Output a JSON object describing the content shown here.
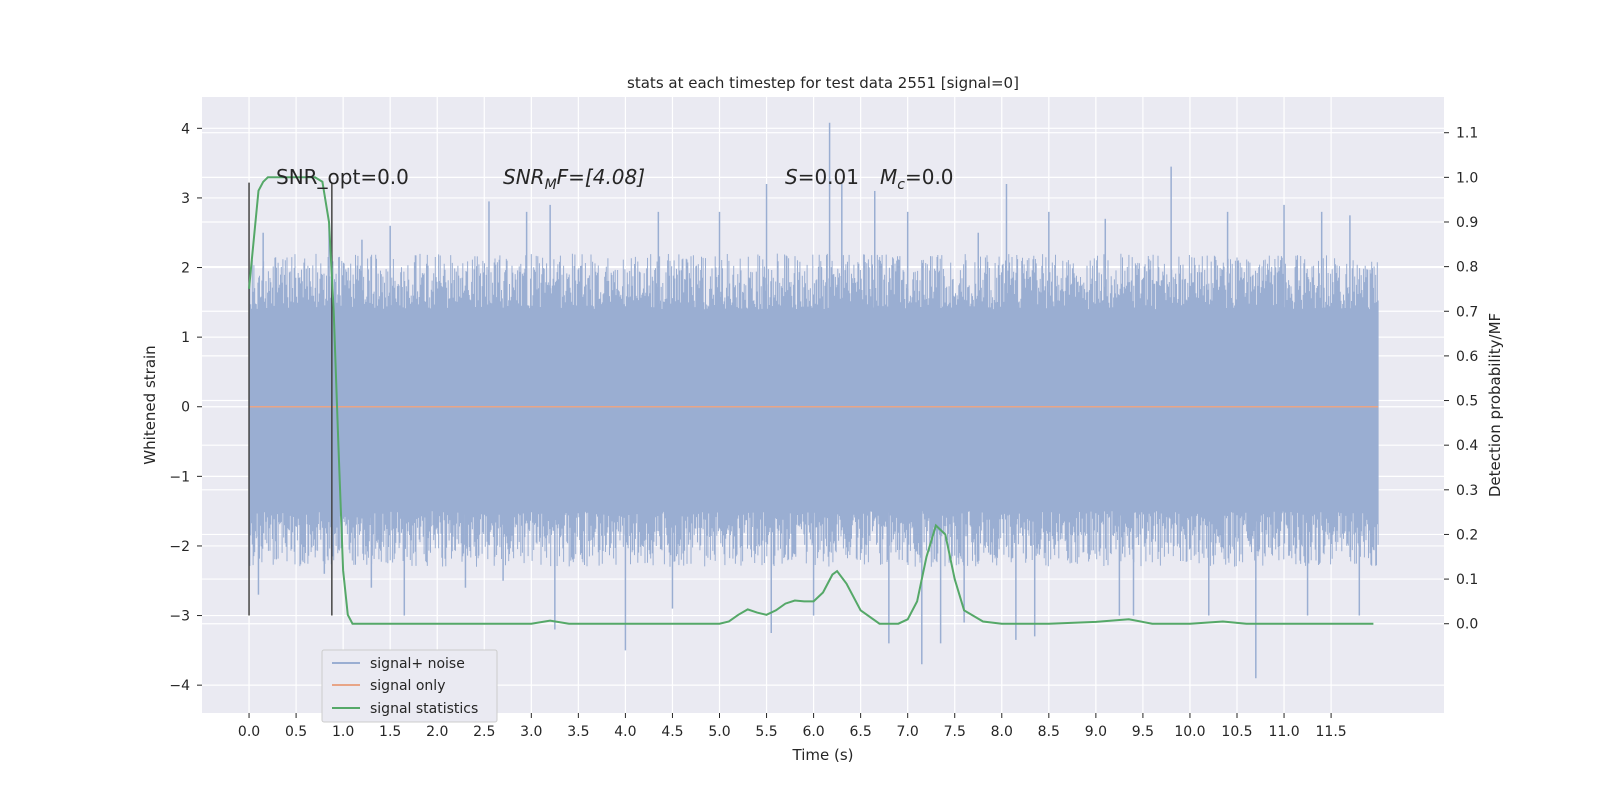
{
  "chart_data": {
    "type": "line",
    "title": "stats at each timestep for test data 2551 [signal=0]",
    "xlabel": "Time (s)",
    "ylabel_left": "Whitened strain",
    "ylabel_right": "Detection probability/MF",
    "xlim": [
      -0.5,
      12.7
    ],
    "ylim_left": [
      -4.4,
      4.45
    ],
    "ylim_right": [
      -0.2,
      1.18
    ],
    "x_ticks": [
      0.0,
      0.5,
      1.0,
      1.5,
      2.0,
      2.5,
      3.0,
      3.5,
      4.0,
      4.5,
      5.0,
      5.5,
      6.0,
      6.5,
      7.0,
      7.5,
      8.0,
      8.5,
      9.0,
      9.5,
      10.0,
      10.5,
      11.0,
      11.5
    ],
    "x_tick_labels": [
      "0.0",
      "0.5",
      "1.0",
      "1.5",
      "2.0",
      "2.5",
      "3.0",
      "3.5",
      "4.0",
      "4.5",
      "5.0",
      "5.5",
      "6.0",
      "6.5",
      "7.0",
      "7.5",
      "8.0",
      "8.5",
      "9.0",
      "9.5",
      "10.0",
      "10.5",
      "11.0",
      "11.5"
    ],
    "y_left_ticks": [
      -4,
      -3,
      -2,
      -1,
      0,
      1,
      2,
      3,
      4
    ],
    "y_left_tick_labels": [
      "−4",
      "−3",
      "−2",
      "−1",
      "0",
      "1",
      "2",
      "3",
      "4"
    ],
    "y_right_ticks": [
      0.0,
      0.1,
      0.2,
      0.3,
      0.4,
      0.5,
      0.6,
      0.7,
      0.8,
      0.9,
      1.0,
      1.1
    ],
    "y_right_tick_labels": [
      "0.0",
      "0.1",
      "0.2",
      "0.3",
      "0.4",
      "0.5",
      "0.6",
      "0.7",
      "0.8",
      "0.9",
      "1.0",
      "1.1"
    ],
    "grid": true,
    "legend_position": "lower-left",
    "annotations": {
      "snr_opt": "SNR_opt=0.0",
      "snr_mf_main": "SNR",
      "snr_mf_sub": "M",
      "snr_mf_rest": "F=[4.08]",
      "s_main": "S",
      "s_rest": "=0.01",
      "mc_main": "M",
      "mc_sub": "c",
      "mc_rest": "=0.0"
    },
    "series": [
      {
        "name": "signal+ noise",
        "color": "#9aaed2",
        "x_range": [
          0.0,
          12.0
        ],
        "typical_envelope": [
          -1.9,
          1.8
        ],
        "peaks": [
          {
            "x": 0.15,
            "y": 2.5
          },
          {
            "x": 0.85,
            "y": 2.6
          },
          {
            "x": 1.2,
            "y": 2.4
          },
          {
            "x": 1.5,
            "y": 2.6
          },
          {
            "x": 2.55,
            "y": 2.95
          },
          {
            "x": 2.95,
            "y": 2.8
          },
          {
            "x": 3.2,
            "y": 2.9
          },
          {
            "x": 4.35,
            "y": 2.8
          },
          {
            "x": 5.0,
            "y": 2.8
          },
          {
            "x": 5.5,
            "y": 3.2
          },
          {
            "x": 6.17,
            "y": 4.08
          },
          {
            "x": 6.3,
            "y": 3.2
          },
          {
            "x": 6.65,
            "y": 3.1
          },
          {
            "x": 7.0,
            "y": 2.8
          },
          {
            "x": 7.75,
            "y": 2.5
          },
          {
            "x": 8.05,
            "y": 3.2
          },
          {
            "x": 8.5,
            "y": 2.8
          },
          {
            "x": 9.1,
            "y": 2.7
          },
          {
            "x": 9.8,
            "y": 3.45
          },
          {
            "x": 10.4,
            "y": 2.8
          },
          {
            "x": 11.0,
            "y": 2.9
          },
          {
            "x": 11.4,
            "y": 2.8
          },
          {
            "x": 11.7,
            "y": 2.75
          }
        ],
        "troughs": [
          {
            "x": 0.1,
            "y": -2.7
          },
          {
            "x": 0.8,
            "y": -2.4
          },
          {
            "x": 1.3,
            "y": -2.6
          },
          {
            "x": 1.65,
            "y": -3.0
          },
          {
            "x": 2.3,
            "y": -2.6
          },
          {
            "x": 2.7,
            "y": -2.5
          },
          {
            "x": 3.25,
            "y": -3.2
          },
          {
            "x": 4.0,
            "y": -3.5
          },
          {
            "x": 4.5,
            "y": -2.9
          },
          {
            "x": 5.55,
            "y": -3.25
          },
          {
            "x": 6.0,
            "y": -3.0
          },
          {
            "x": 6.8,
            "y": -3.4
          },
          {
            "x": 7.15,
            "y": -3.7
          },
          {
            "x": 7.35,
            "y": -3.4
          },
          {
            "x": 7.6,
            "y": -3.1
          },
          {
            "x": 8.15,
            "y": -3.35
          },
          {
            "x": 8.35,
            "y": -3.3
          },
          {
            "x": 9.25,
            "y": -3.0
          },
          {
            "x": 9.4,
            "y": -3.0
          },
          {
            "x": 10.2,
            "y": -3.0
          },
          {
            "x": 10.7,
            "y": -3.9
          },
          {
            "x": 11.25,
            "y": -3.0
          },
          {
            "x": 11.8,
            "y": -3.0
          }
        ]
      },
      {
        "name": "signal only",
        "color": "#e8a587",
        "x": [
          0.0,
          12.0
        ],
        "y": [
          0.0,
          0.0
        ]
      },
      {
        "name": "signal statistics",
        "color": "#55a868",
        "axis": "right",
        "x": [
          0.0,
          0.1,
          0.15,
          0.2,
          0.3,
          0.45,
          0.6,
          0.7,
          0.78,
          0.85,
          0.9,
          0.95,
          1.0,
          1.05,
          1.1,
          1.2,
          1.5,
          2.0,
          2.5,
          3.0,
          3.2,
          3.4,
          3.6,
          4.0,
          4.5,
          5.0,
          5.1,
          5.2,
          5.3,
          5.4,
          5.5,
          5.6,
          5.7,
          5.8,
          5.9,
          6.0,
          6.1,
          6.2,
          6.25,
          6.35,
          6.5,
          6.7,
          6.9,
          7.0,
          7.1,
          7.2,
          7.3,
          7.4,
          7.5,
          7.6,
          7.8,
          8.0,
          8.5,
          9.0,
          9.35,
          9.6,
          10.0,
          10.35,
          10.6,
          11.0,
          11.5,
          11.95
        ],
        "y": [
          0.75,
          0.97,
          0.99,
          1.0,
          1.0,
          1.0,
          1.0,
          1.0,
          0.99,
          0.9,
          0.7,
          0.4,
          0.12,
          0.02,
          0.0,
          0.0,
          0.0,
          0.0,
          0.0,
          0.0,
          0.007,
          0.0,
          0.0,
          0.0,
          0.0,
          0.0,
          0.005,
          0.02,
          0.032,
          0.025,
          0.02,
          0.03,
          0.045,
          0.052,
          0.05,
          0.05,
          0.07,
          0.11,
          0.118,
          0.09,
          0.03,
          0.0,
          0.0,
          0.01,
          0.05,
          0.15,
          0.22,
          0.2,
          0.1,
          0.03,
          0.005,
          0.0,
          0.0,
          0.004,
          0.01,
          0.0,
          0.0,
          0.005,
          0.0,
          0.0,
          0.0,
          0.0
        ]
      }
    ],
    "vertical_markers": {
      "color": "#444444",
      "x": [
        0.0,
        0.88
      ],
      "y_range": [
        -3.0,
        3.22
      ]
    }
  }
}
